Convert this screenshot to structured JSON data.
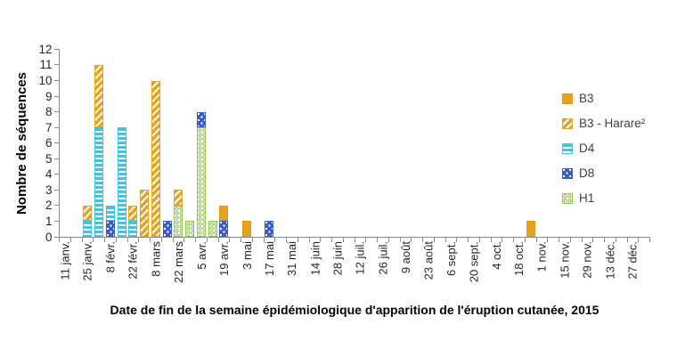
{
  "chart_data": {
    "type": "bar",
    "stacked": true,
    "title": "",
    "ylabel": "Nombre de séquences",
    "xlabel": "Date de fin de la semaine épidémiologique d'apparition de l'éruption cutanée, 2015",
    "ylim": [
      0,
      12
    ],
    "ytick_step": 1,
    "ytick_labels": [
      "0",
      "1",
      "2",
      "3",
      "4",
      "5",
      "6",
      "7",
      "8",
      "9",
      "10",
      "11",
      "12"
    ],
    "grid": false,
    "legend_position": "right",
    "x_axis_note": "ticks weekly, labels every 2 weeks",
    "n_week_slots": 52,
    "x_tick_labels": [
      "11 janv.",
      "25 janv.",
      "8 févr.",
      "22 févr.",
      "8 mars",
      "22 mars",
      "5 avr.",
      "19 avr.",
      "3 mai",
      "17 mai",
      "31 mai",
      "14 juin",
      "28 juin",
      "12 juil.",
      "26 juil.",
      "9 août",
      "23 août",
      "6 sept.",
      "20 sept.",
      "4 oct.",
      "18 oct.",
      "1 nov.",
      "15 nov.",
      "29 nov.",
      "13 déc.",
      "27 déc."
    ],
    "series": [
      {
        "id": "B3",
        "name": "B3",
        "color": "#e6a31e",
        "pattern": "solid"
      },
      {
        "id": "B3H",
        "name": "B3 - Harare²",
        "color": "#e6a31e",
        "pattern": "white-diagonal-stripes"
      },
      {
        "id": "D4",
        "name": "D4",
        "color": "#40c4e4",
        "pattern": "white-horizontal-stripes"
      },
      {
        "id": "D8",
        "name": "D8",
        "color": "#3a5cc4",
        "pattern": "white-dots"
      },
      {
        "id": "H1",
        "name": "H1",
        "color": "#92c353",
        "pattern": "green-rings-on-white"
      }
    ],
    "stack_order_bottom_to_top": [
      "H1",
      "D8",
      "D4",
      "B3H",
      "B3"
    ],
    "bars": [
      {
        "week": "25 janv.",
        "slot": 2,
        "segments": {
          "D4": 1,
          "B3H": 1
        }
      },
      {
        "week": "1 févr.",
        "slot": 3,
        "segments": {
          "D4": 7,
          "B3H": 4
        }
      },
      {
        "week": "8 févr.",
        "slot": 4,
        "segments": {
          "D8": 1,
          "D4": 1
        }
      },
      {
        "week": "15 févr.",
        "slot": 5,
        "segments": {
          "D4": 7
        }
      },
      {
        "week": "22 févr.",
        "slot": 6,
        "segments": {
          "D4": 1,
          "B3H": 1
        }
      },
      {
        "week": "1 mars",
        "slot": 7,
        "segments": {
          "B3H": 3
        }
      },
      {
        "week": "8 mars",
        "slot": 8,
        "segments": {
          "B3H": 10
        }
      },
      {
        "week": "15 mars",
        "slot": 9,
        "segments": {
          "D8": 1
        }
      },
      {
        "week": "22 mars",
        "slot": 10,
        "segments": {
          "H1": 2,
          "B3H": 1
        }
      },
      {
        "week": "29 mars",
        "slot": 11,
        "segments": {
          "H1": 1
        }
      },
      {
        "week": "5 avr.",
        "slot": 12,
        "segments": {
          "H1": 7,
          "D8": 1
        }
      },
      {
        "week": "12 avr.",
        "slot": 13,
        "segments": {
          "H1": 1
        }
      },
      {
        "week": "19 avr.",
        "slot": 14,
        "segments": {
          "D8": 1,
          "B3": 1
        }
      },
      {
        "week": "3 mai",
        "slot": 16,
        "segments": {
          "B3": 1
        }
      },
      {
        "week": "17 mai",
        "slot": 18,
        "segments": {
          "D8": 1
        }
      },
      {
        "week": "25 oct.",
        "slot": 41,
        "segments": {
          "B3": 1
        }
      }
    ]
  }
}
